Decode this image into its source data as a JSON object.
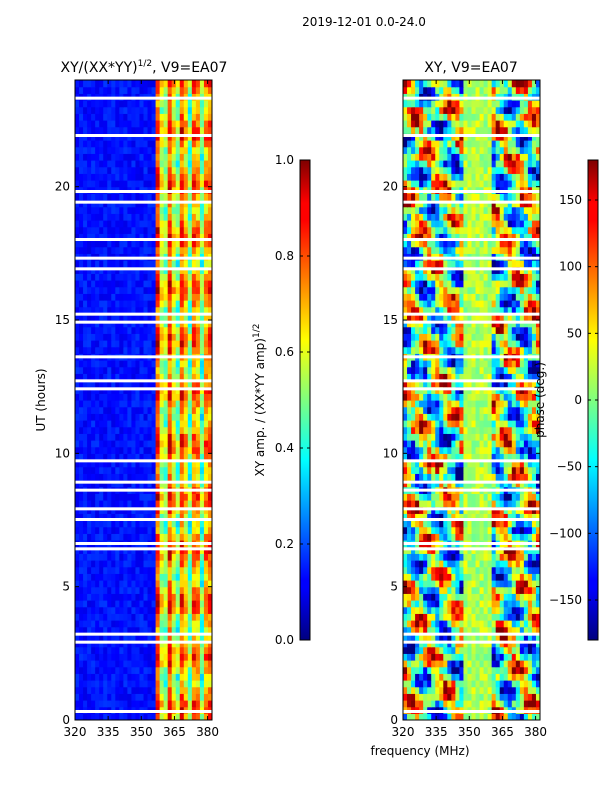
{
  "figure": {
    "suptitle": "2019-12-01 0.0-24.0",
    "xlabel": "frequency (MHz)"
  },
  "chart_data": [
    {
      "type": "heatmap",
      "title": "XY/(XX*YY)",
      "title_sup": "1/2",
      "title_suffix": ", V9=EA07",
      "ylabel": "UT (hours)",
      "xlim": [
        320,
        382
      ],
      "ylim": [
        0,
        24
      ],
      "xticks": [
        320,
        335,
        350,
        365,
        380
      ],
      "yticks": [
        0,
        5,
        10,
        15,
        20
      ],
      "colorbar": {
        "label": "XY amp. / (XX*YY amp)",
        "label_sup": "1/2",
        "range": [
          0.0,
          1.0
        ],
        "ticks": [
          "0.0",
          "0.2",
          "0.4",
          "0.6",
          "0.8",
          "1.0"
        ],
        "colormap": "jet"
      }
    },
    {
      "type": "heatmap",
      "title": "XY, V9=EA07",
      "xlim": [
        320,
        382
      ],
      "ylim": [
        0,
        24
      ],
      "xticks": [
        320,
        335,
        350,
        365,
        380
      ],
      "yticks": [
        0,
        5,
        10,
        15,
        20
      ],
      "colorbar": {
        "label": "phase (deg.)",
        "range": [
          -180,
          180
        ],
        "ticks": [
          "-150",
          "-100",
          "-50",
          "0",
          "50",
          "100",
          "150"
        ],
        "colormap": "jet"
      }
    }
  ]
}
